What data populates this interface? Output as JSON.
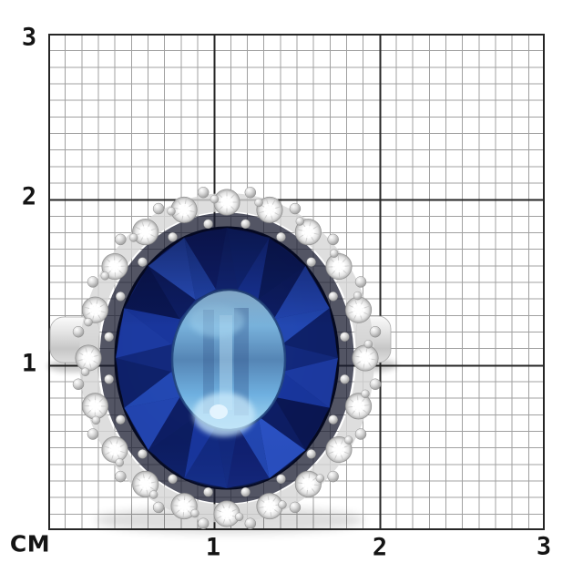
{
  "axes": {
    "unit": "СМ",
    "y": [
      "3",
      "2",
      "1"
    ],
    "x": [
      "1",
      "2",
      "3"
    ]
  },
  "grid": {
    "major_line_color": "#262626",
    "minor_line_color": "#a0a0a0",
    "label_color": "#141414",
    "background": "#ffffff"
  },
  "ring": {
    "kind": "sapphire-halo-ring-photo",
    "colors": {
      "sapphire_darkest": "#081236",
      "sapphire_dark": "#0c1a57",
      "sapphire_mid": "#13277a",
      "sapphire_bright": "#2c55c8",
      "table_top": "#a0cdec",
      "table_mid": "#5585b5",
      "table_glow": "#c8e8fa",
      "diamond_core": "#ffffff",
      "diamond_edge": "#ababab",
      "metal_light": "#fbfbfb",
      "metal_mid": "#c6c6c6",
      "metal_dark": "#8f8f8f",
      "basket_dark": "#1a1c30",
      "shadow": "#000000"
    }
  }
}
